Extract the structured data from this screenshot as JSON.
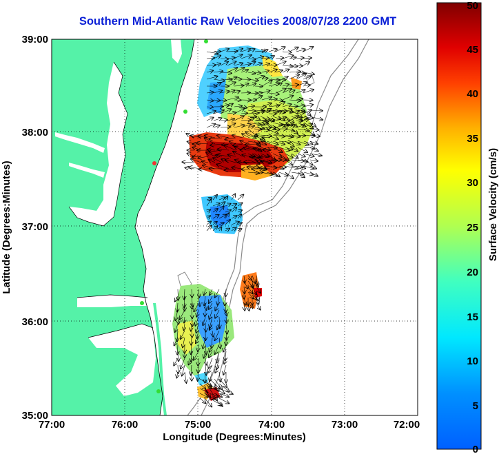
{
  "title": "Southern Mid-Atlantic Raw Velocities 2008/07/28 2200 GMT",
  "map": {
    "xlabel": "Longitude (Degrees:Minutes)",
    "ylabel": "Latitude (Degrees:Minutes)",
    "x_ticks": [
      "77:00",
      "76:00",
      "75:00",
      "74:00",
      "73:00",
      "72:00"
    ],
    "y_ticks": [
      "39:00",
      "38:00",
      "37:00",
      "36:00",
      "35:00"
    ],
    "lon_range": [
      -77,
      -72
    ],
    "lat_range": [
      35,
      39
    ],
    "land_color": "#55f2a8",
    "grid": "dotted"
  },
  "colorbar": {
    "label": "Surface Velocity (cm/s)",
    "ticks": [
      "0",
      "5",
      "10",
      "15",
      "20",
      "25",
      "30",
      "35",
      "40",
      "45",
      "50"
    ],
    "min": 0,
    "max": 50,
    "colormap": "jet"
  }
}
